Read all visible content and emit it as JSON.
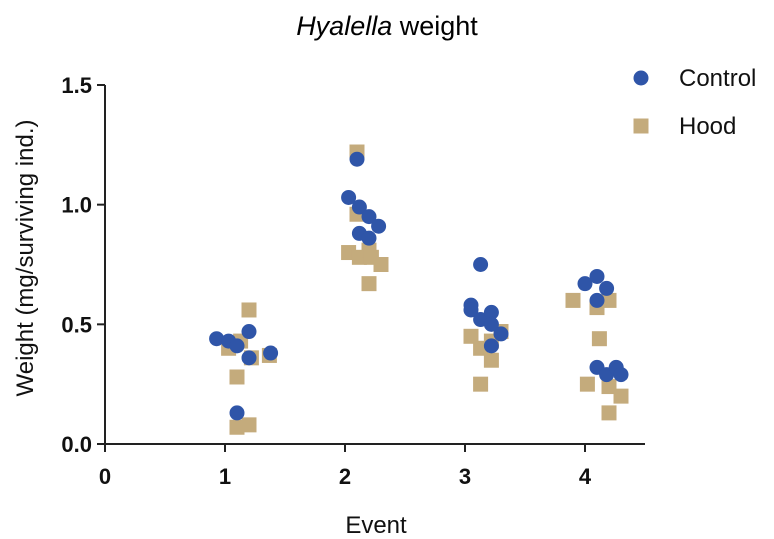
{
  "chart_data": {
    "type": "scatter",
    "title_italic": "Hyalella",
    "title_rest": " weight",
    "xlabel": "Event",
    "ylabel": "Weight (mg/surviving ind.)",
    "xlim": [
      0,
      4.5
    ],
    "ylim": [
      0,
      1.5
    ],
    "x_ticks": [
      "0",
      "1",
      "2",
      "3",
      "4"
    ],
    "y_ticks": [
      "0.0",
      "0.5",
      "1.0",
      "1.5"
    ],
    "y_tick_values": [
      0,
      0.5,
      1.0,
      1.5
    ],
    "grid": false,
    "legend_position": "top-right",
    "series": [
      {
        "name": "Control",
        "marker": "circle",
        "color": "#2f55a8",
        "points": [
          {
            "x": 0.93,
            "y": 0.44
          },
          {
            "x": 1.03,
            "y": 0.43
          },
          {
            "x": 1.1,
            "y": 0.41
          },
          {
            "x": 1.2,
            "y": 0.47
          },
          {
            "x": 1.2,
            "y": 0.36
          },
          {
            "x": 1.38,
            "y": 0.38
          },
          {
            "x": 1.1,
            "y": 0.13
          },
          {
            "x": 2.03,
            "y": 1.03
          },
          {
            "x": 2.1,
            "y": 1.19
          },
          {
            "x": 2.12,
            "y": 0.99
          },
          {
            "x": 2.2,
            "y": 0.95
          },
          {
            "x": 2.28,
            "y": 0.91
          },
          {
            "x": 2.12,
            "y": 0.88
          },
          {
            "x": 2.2,
            "y": 0.86
          },
          {
            "x": 3.05,
            "y": 0.58
          },
          {
            "x": 3.05,
            "y": 0.56
          },
          {
            "x": 3.13,
            "y": 0.75
          },
          {
            "x": 3.13,
            "y": 0.52
          },
          {
            "x": 3.22,
            "y": 0.55
          },
          {
            "x": 3.22,
            "y": 0.5
          },
          {
            "x": 3.3,
            "y": 0.46
          },
          {
            "x": 3.22,
            "y": 0.41
          },
          {
            "x": 4.0,
            "y": 0.67
          },
          {
            "x": 4.1,
            "y": 0.7
          },
          {
            "x": 4.18,
            "y": 0.65
          },
          {
            "x": 4.1,
            "y": 0.6
          },
          {
            "x": 4.1,
            "y": 0.32
          },
          {
            "x": 4.18,
            "y": 0.29
          },
          {
            "x": 4.26,
            "y": 0.32
          },
          {
            "x": 4.3,
            "y": 0.29
          }
        ]
      },
      {
        "name": "Hood",
        "marker": "square",
        "color": "#c4ab7c",
        "points": [
          {
            "x": 1.03,
            "y": 0.4
          },
          {
            "x": 1.13,
            "y": 0.43
          },
          {
            "x": 1.2,
            "y": 0.56
          },
          {
            "x": 1.22,
            "y": 0.36
          },
          {
            "x": 1.37,
            "y": 0.37
          },
          {
            "x": 1.1,
            "y": 0.28
          },
          {
            "x": 1.1,
            "y": 0.07
          },
          {
            "x": 1.2,
            "y": 0.08
          },
          {
            "x": 2.1,
            "y": 1.22
          },
          {
            "x": 2.1,
            "y": 0.96
          },
          {
            "x": 2.03,
            "y": 0.8
          },
          {
            "x": 2.12,
            "y": 0.78
          },
          {
            "x": 2.2,
            "y": 0.81
          },
          {
            "x": 2.22,
            "y": 0.78
          },
          {
            "x": 2.3,
            "y": 0.75
          },
          {
            "x": 2.2,
            "y": 0.67
          },
          {
            "x": 3.05,
            "y": 0.45
          },
          {
            "x": 3.13,
            "y": 0.4
          },
          {
            "x": 3.22,
            "y": 0.43
          },
          {
            "x": 3.3,
            "y": 0.47
          },
          {
            "x": 3.22,
            "y": 0.35
          },
          {
            "x": 3.13,
            "y": 0.25
          },
          {
            "x": 3.9,
            "y": 0.6
          },
          {
            "x": 4.1,
            "y": 0.57
          },
          {
            "x": 4.2,
            "y": 0.6
          },
          {
            "x": 4.12,
            "y": 0.44
          },
          {
            "x": 4.02,
            "y": 0.25
          },
          {
            "x": 4.2,
            "y": 0.24
          },
          {
            "x": 4.2,
            "y": 0.13
          },
          {
            "x": 4.3,
            "y": 0.2
          }
        ]
      }
    ]
  }
}
